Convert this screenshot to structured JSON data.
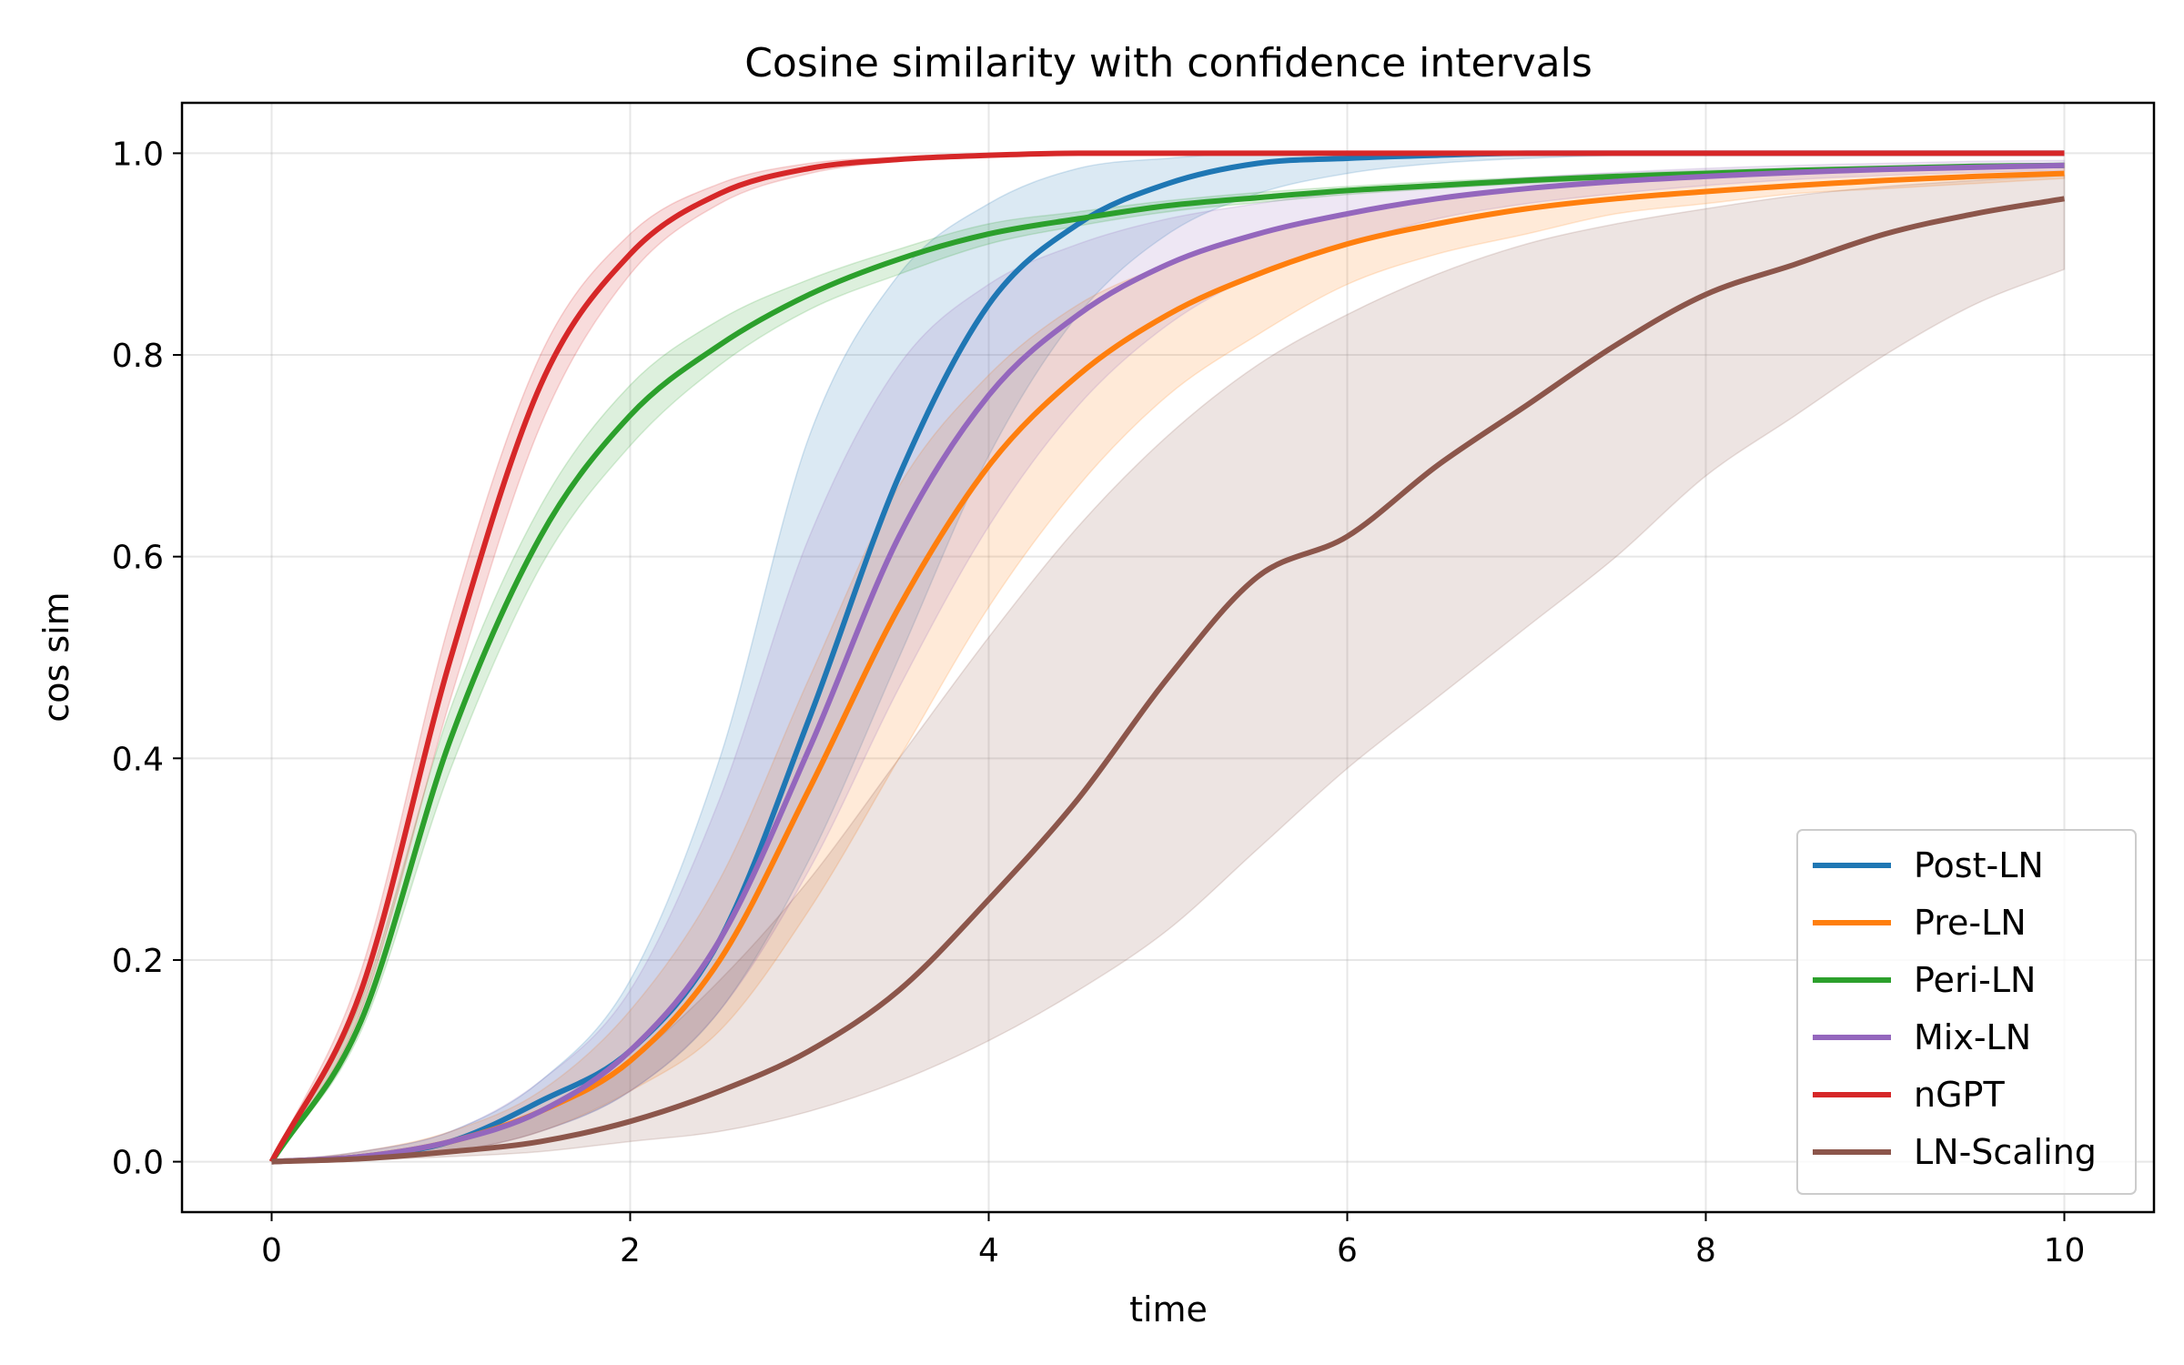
{
  "chart_data": {
    "type": "line",
    "title": "Cosine similarity with confidence intervals",
    "xlabel": "time",
    "ylabel": "cos sim",
    "xlim": [
      -0.5,
      10.5
    ],
    "ylim": [
      -0.05,
      1.05
    ],
    "xticks": [
      0,
      2,
      4,
      6,
      8,
      10
    ],
    "xtick_labels": [
      "0",
      "2",
      "4",
      "6",
      "8",
      "10"
    ],
    "yticks": [
      0.0,
      0.2,
      0.4,
      0.6,
      0.8,
      1.0
    ],
    "ytick_labels": [
      "0.0",
      "0.2",
      "0.4",
      "0.6",
      "0.8",
      "1.0"
    ],
    "grid": true,
    "legend_position": "bottom-right",
    "x": [
      0,
      0.5,
      1,
      1.5,
      2,
      2.5,
      3,
      3.5,
      4,
      4.5,
      5,
      5.5,
      6,
      6.5,
      7,
      7.5,
      8,
      8.5,
      9,
      9.5,
      10
    ],
    "series": [
      {
        "name": "Post-LN",
        "color": "#1f77b4",
        "values": [
          0.0,
          0.005,
          0.02,
          0.06,
          0.11,
          0.22,
          0.44,
          0.68,
          0.85,
          0.93,
          0.97,
          0.99,
          0.995,
          0.998,
          1.0,
          1.0,
          1.0,
          1.0,
          1.0,
          1.0,
          1.0
        ],
        "lower": [
          0.0,
          0.003,
          0.01,
          0.03,
          0.07,
          0.15,
          0.3,
          0.5,
          0.7,
          0.84,
          0.92,
          0.96,
          0.98,
          0.99,
          0.995,
          0.998,
          1.0,
          1.0,
          1.0,
          1.0,
          1.0
        ],
        "upper": [
          0.0,
          0.01,
          0.03,
          0.08,
          0.18,
          0.4,
          0.72,
          0.88,
          0.95,
          0.985,
          0.995,
          1.0,
          1.0,
          1.0,
          1.0,
          1.0,
          1.0,
          1.0,
          1.0,
          1.0,
          1.0
        ]
      },
      {
        "name": "Pre-LN",
        "color": "#ff7f0e",
        "values": [
          0.0,
          0.005,
          0.02,
          0.05,
          0.1,
          0.2,
          0.37,
          0.55,
          0.69,
          0.78,
          0.84,
          0.88,
          0.91,
          0.93,
          0.945,
          0.955,
          0.962,
          0.968,
          0.973,
          0.977,
          0.98
        ],
        "lower": [
          0.0,
          0.003,
          0.01,
          0.03,
          0.07,
          0.13,
          0.25,
          0.4,
          0.55,
          0.67,
          0.76,
          0.82,
          0.87,
          0.9,
          0.92,
          0.94,
          0.95,
          0.96,
          0.965,
          0.97,
          0.975
        ],
        "upper": [
          0.0,
          0.01,
          0.03,
          0.07,
          0.15,
          0.28,
          0.48,
          0.67,
          0.78,
          0.85,
          0.89,
          0.92,
          0.94,
          0.955,
          0.965,
          0.972,
          0.978,
          0.982,
          0.985,
          0.987,
          0.99
        ]
      },
      {
        "name": "Peri-LN",
        "color": "#2ca02c",
        "values": [
          0.0,
          0.14,
          0.42,
          0.62,
          0.74,
          0.81,
          0.86,
          0.895,
          0.92,
          0.935,
          0.948,
          0.956,
          0.963,
          0.968,
          0.973,
          0.977,
          0.98,
          0.983,
          0.985,
          0.987,
          0.988
        ],
        "lower": [
          0.0,
          0.13,
          0.39,
          0.59,
          0.71,
          0.79,
          0.845,
          0.88,
          0.91,
          0.928,
          0.942,
          0.951,
          0.959,
          0.965,
          0.97,
          0.974,
          0.978,
          0.981,
          0.983,
          0.985,
          0.986
        ],
        "upper": [
          0.0,
          0.16,
          0.45,
          0.65,
          0.77,
          0.835,
          0.875,
          0.905,
          0.93,
          0.942,
          0.953,
          0.961,
          0.967,
          0.972,
          0.976,
          0.98,
          0.983,
          0.985,
          0.987,
          0.989,
          0.99
        ]
      },
      {
        "name": "Mix-LN",
        "color": "#9467bd",
        "values": [
          0.0,
          0.005,
          0.02,
          0.05,
          0.11,
          0.22,
          0.41,
          0.62,
          0.76,
          0.84,
          0.89,
          0.92,
          0.94,
          0.955,
          0.965,
          0.972,
          0.977,
          0.981,
          0.984,
          0.986,
          0.988
        ],
        "lower": [
          0.0,
          0.003,
          0.01,
          0.03,
          0.07,
          0.15,
          0.29,
          0.47,
          0.63,
          0.75,
          0.83,
          0.88,
          0.91,
          0.935,
          0.95,
          0.96,
          0.968,
          0.974,
          0.978,
          0.981,
          0.983
        ],
        "upper": [
          0.0,
          0.01,
          0.03,
          0.08,
          0.17,
          0.36,
          0.62,
          0.79,
          0.87,
          0.91,
          0.935,
          0.95,
          0.962,
          0.97,
          0.976,
          0.981,
          0.985,
          0.988,
          0.99,
          0.992,
          0.993
        ]
      },
      {
        "name": "nGPT",
        "color": "#d62728",
        "values": [
          0.0,
          0.17,
          0.5,
          0.77,
          0.9,
          0.96,
          0.985,
          0.994,
          0.998,
          1.0,
          1.0,
          1.0,
          1.0,
          1.0,
          1.0,
          1.0,
          1.0,
          1.0,
          1.0,
          1.0,
          1.0
        ],
        "lower": [
          0.0,
          0.15,
          0.46,
          0.73,
          0.88,
          0.95,
          0.98,
          0.992,
          0.997,
          0.999,
          1.0,
          1.0,
          1.0,
          1.0,
          1.0,
          1.0,
          1.0,
          1.0,
          1.0,
          1.0,
          1.0
        ],
        "upper": [
          0.0,
          0.19,
          0.54,
          0.8,
          0.92,
          0.97,
          0.99,
          0.996,
          0.999,
          1.0,
          1.0,
          1.0,
          1.0,
          1.0,
          1.0,
          1.0,
          1.0,
          1.0,
          1.0,
          1.0,
          1.0
        ]
      },
      {
        "name": "LN-Scaling",
        "color": "#8c564b",
        "values": [
          0.0,
          0.003,
          0.01,
          0.02,
          0.04,
          0.07,
          0.11,
          0.17,
          0.26,
          0.36,
          0.48,
          0.58,
          0.62,
          0.69,
          0.75,
          0.81,
          0.86,
          0.89,
          0.92,
          0.94,
          0.955
        ],
        "lower": [
          0.0,
          0.002,
          0.005,
          0.01,
          0.02,
          0.03,
          0.05,
          0.08,
          0.12,
          0.17,
          0.23,
          0.31,
          0.39,
          0.46,
          0.53,
          0.6,
          0.68,
          0.74,
          0.8,
          0.85,
          0.885
        ],
        "upper": [
          0.0,
          0.005,
          0.02,
          0.05,
          0.1,
          0.18,
          0.28,
          0.4,
          0.52,
          0.63,
          0.72,
          0.79,
          0.84,
          0.88,
          0.91,
          0.93,
          0.945,
          0.958,
          0.967,
          0.973,
          0.978
        ]
      }
    ]
  }
}
